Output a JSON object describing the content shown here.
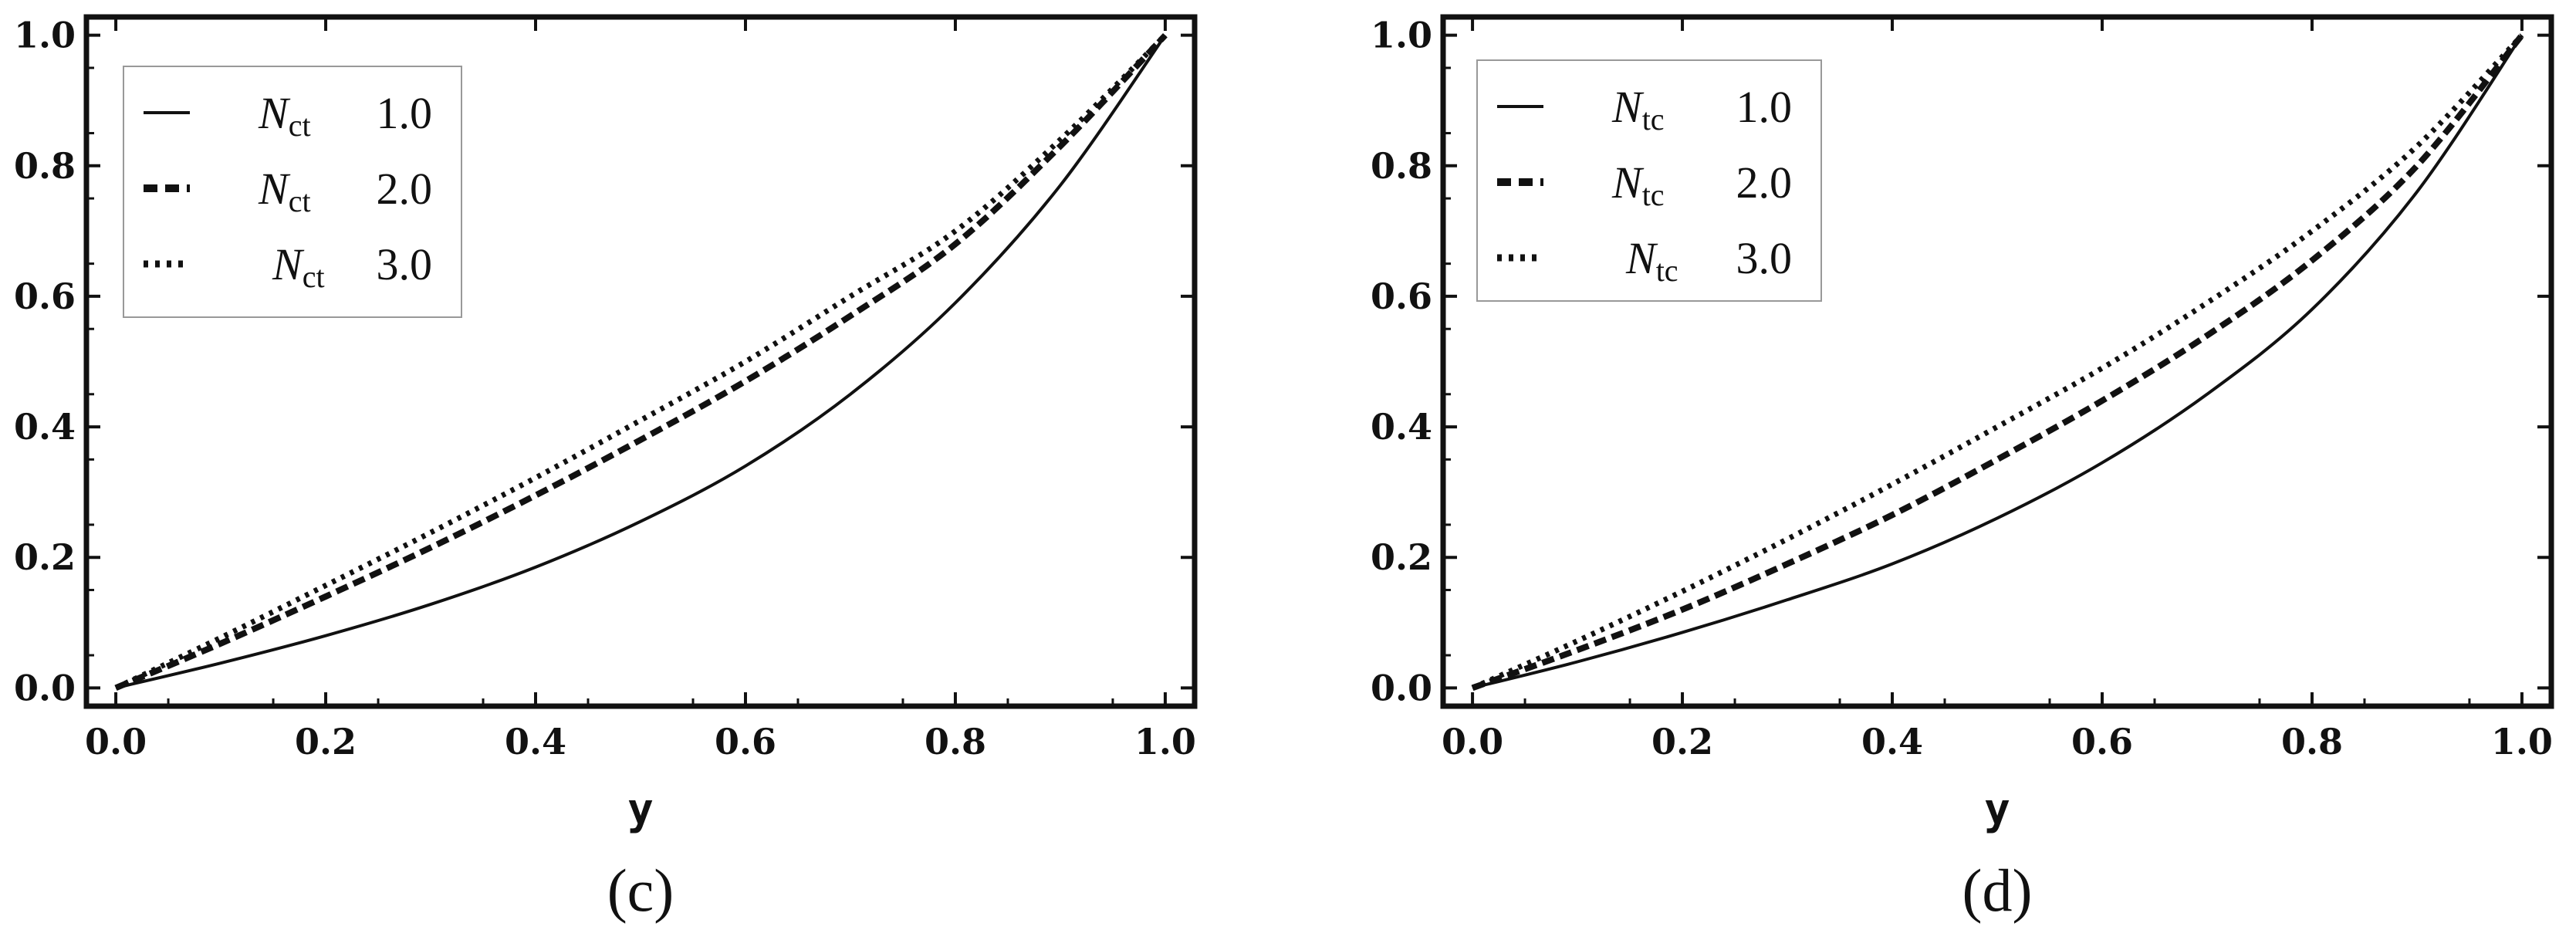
{
  "chart_data": [
    {
      "type": "line",
      "panel_label": "(c)",
      "xlabel": "y",
      "ylabel": "",
      "xlim": [
        0.0,
        1.0
      ],
      "ylim": [
        0.0,
        1.0
      ],
      "x_ticks": [
        "0.0",
        "0.2",
        "0.4",
        "0.6",
        "0.8",
        "1.0"
      ],
      "y_ticks": [
        "0.0",
        "0.2",
        "0.4",
        "0.6",
        "0.8",
        "1.0"
      ],
      "legend_position": "top-left",
      "x": [
        0.0,
        0.1,
        0.2,
        0.3,
        0.4,
        0.5,
        0.6,
        0.7,
        0.8,
        0.9,
        1.0
      ],
      "series": [
        {
          "name": "N",
          "subscript": "ct",
          "value": "1.0",
          "style": "solid",
          "values": [
            0.0,
            0.038,
            0.08,
            0.128,
            0.185,
            0.255,
            0.34,
            0.45,
            0.59,
            0.77,
            1.0
          ]
        },
        {
          "name": "N",
          "subscript": "ct",
          "value": "2.0",
          "style": "dashed",
          "values": [
            0.0,
            0.068,
            0.14,
            0.215,
            0.295,
            0.38,
            0.47,
            0.57,
            0.68,
            0.83,
            1.0
          ]
        },
        {
          "name": "N",
          "subscript": "ct",
          "value": "3.0",
          "style": "dotted",
          "values": [
            0.0,
            0.077,
            0.157,
            0.238,
            0.322,
            0.41,
            0.5,
            0.6,
            0.7,
            0.84,
            1.0
          ]
        }
      ]
    },
    {
      "type": "line",
      "panel_label": "(d)",
      "xlabel": "y",
      "ylabel": "",
      "xlim": [
        0.0,
        1.0
      ],
      "ylim": [
        0.0,
        1.0
      ],
      "x_ticks": [
        "0.0",
        "0.2",
        "0.4",
        "0.6",
        "0.8",
        "1.0"
      ],
      "y_ticks": [
        "0.0",
        "0.2",
        "0.4",
        "0.6",
        "0.8",
        "1.0"
      ],
      "legend_position": "top-left",
      "x": [
        0.0,
        0.1,
        0.2,
        0.3,
        0.4,
        0.5,
        0.6,
        0.7,
        0.8,
        0.9,
        1.0
      ],
      "series": [
        {
          "name": "N",
          "subscript": "tc",
          "value": "1.0",
          "style": "solid",
          "values": [
            0.0,
            0.04,
            0.085,
            0.135,
            0.19,
            0.26,
            0.345,
            0.45,
            0.58,
            0.76,
            1.0
          ]
        },
        {
          "name": "N",
          "subscript": "tc",
          "value": "2.0",
          "style": "dashed",
          "values": [
            0.0,
            0.058,
            0.12,
            0.19,
            0.265,
            0.35,
            0.44,
            0.54,
            0.655,
            0.8,
            1.0
          ]
        },
        {
          "name": "N",
          "subscript": "tc",
          "value": "3.0",
          "style": "dotted",
          "values": [
            0.0,
            0.072,
            0.148,
            0.228,
            0.312,
            0.4,
            0.49,
            0.59,
            0.7,
            0.83,
            1.0
          ]
        }
      ]
    }
  ]
}
